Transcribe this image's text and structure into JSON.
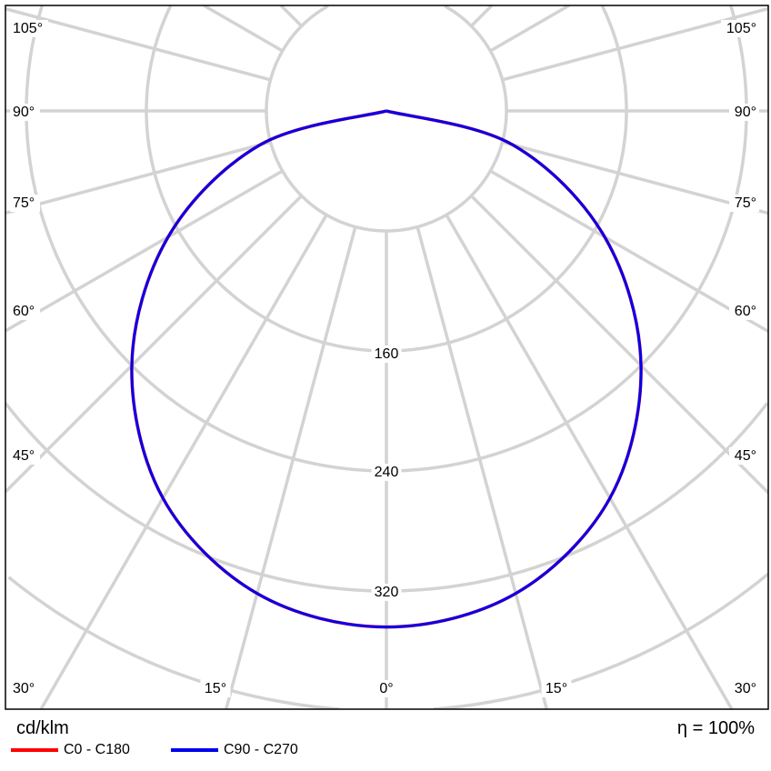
{
  "chart_data": {
    "type": "polar-line",
    "unit_label": "cd/klm",
    "efficiency_label": "η = 100%",
    "radial_ticks": [
      80,
      160,
      240,
      320,
      400,
      480
    ],
    "radial_tick_labels": [
      "160",
      "240",
      "320"
    ],
    "angle_labels_left": [
      "105°",
      "90°",
      "75°",
      "60°",
      "45°",
      "30°"
    ],
    "angle_labels_bottom": [
      "15°",
      "0°",
      "15°"
    ],
    "angle_labels_right": [
      "105°",
      "90°",
      "75°",
      "60°",
      "45°",
      "30°"
    ],
    "angles_deg": [
      0,
      15,
      30,
      45,
      60,
      75,
      90
    ],
    "grid": true,
    "legend_position": "bottom-left",
    "series": [
      {
        "name": "C0 - C180",
        "color": "#ff0000",
        "values": [
          344,
          333,
          298,
          240,
          168,
          87,
          0
        ]
      },
      {
        "name": "C90 - C270",
        "color": "#0000ee",
        "values": [
          344,
          333,
          298,
          240,
          168,
          87,
          0
        ]
      }
    ]
  }
}
